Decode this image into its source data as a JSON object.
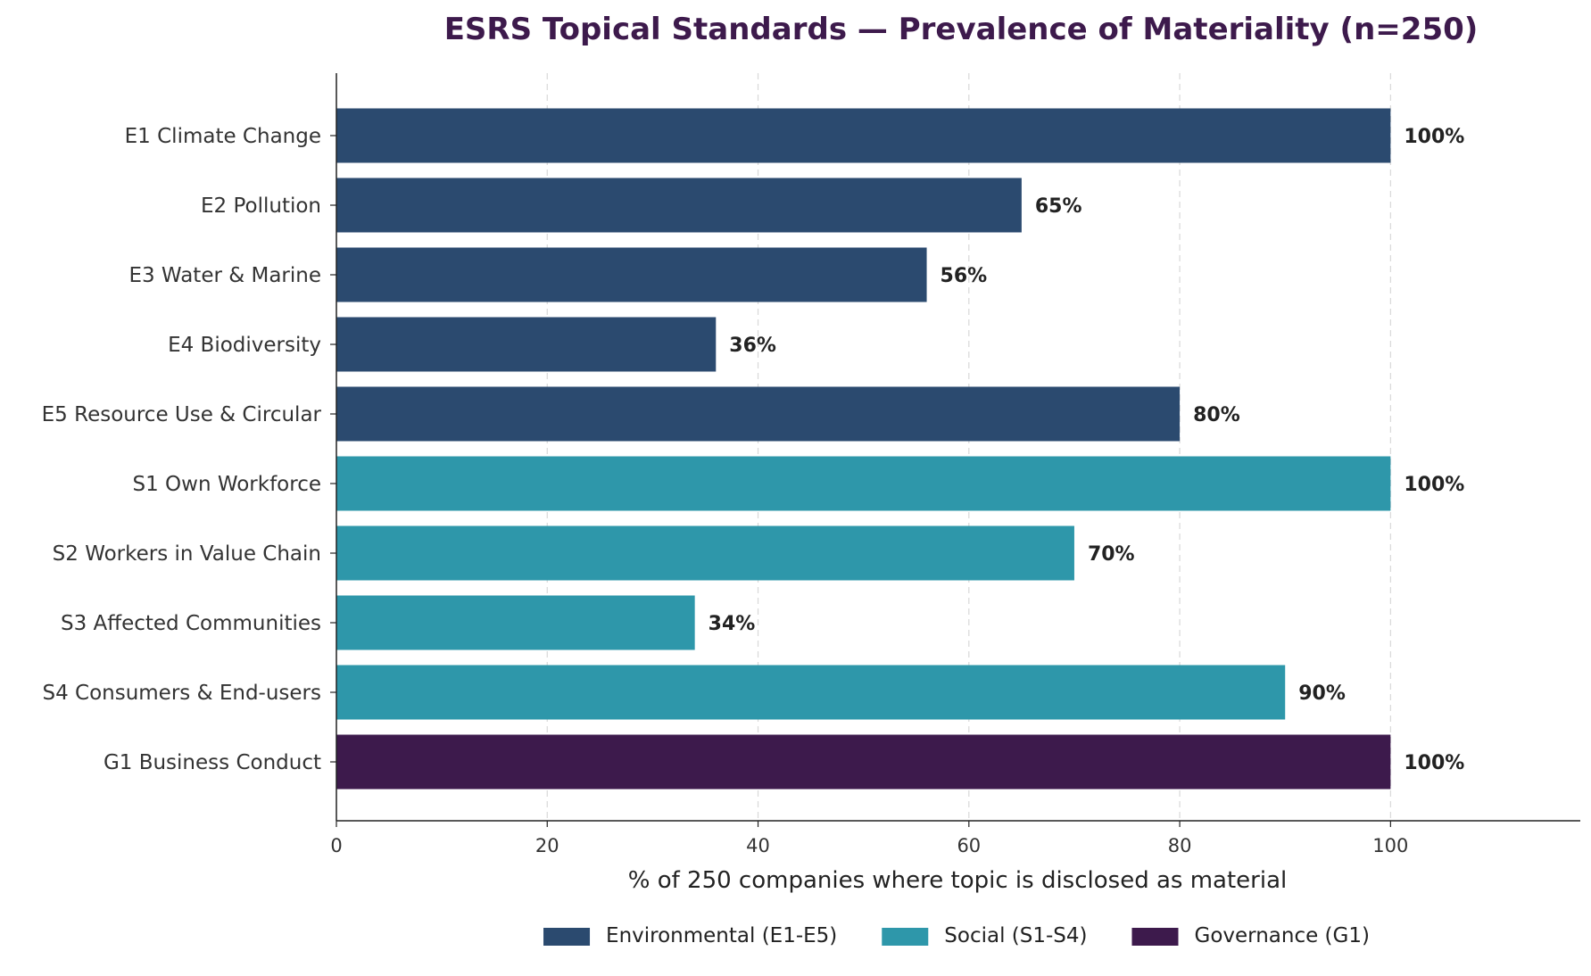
{
  "chart_data": {
    "type": "bar",
    "orientation": "horizontal",
    "title": "ESRS Topical Standards — Prevalence of Materiality (n=250)",
    "xlabel": "% of 250 companies where topic is disclosed as material",
    "ylabel": "",
    "xlim": [
      0,
      118
    ],
    "xticks": [
      0,
      20,
      40,
      60,
      80,
      100
    ],
    "grid": "x-dashed",
    "legend_position": "bottom-center",
    "value_label_suffix": "%",
    "categories": [
      "E1 Climate Change",
      "E2 Pollution",
      "E3 Water & Marine",
      "E4 Biodiversity",
      "E5 Resource Use & Circular",
      "S1 Own Workforce",
      "S2 Workers in Value Chain",
      "S3 Affected Communities",
      "S4 Consumers & End-users",
      "G1 Business Conduct"
    ],
    "values": [
      100,
      65,
      56,
      36,
      80,
      100,
      70,
      34,
      90,
      100
    ],
    "groups": [
      "environmental",
      "environmental",
      "environmental",
      "environmental",
      "environmental",
      "social",
      "social",
      "social",
      "social",
      "governance"
    ],
    "series": [
      {
        "key": "environmental",
        "name": "Environmental (E1-E5)",
        "color": "#2b4a6f"
      },
      {
        "key": "social",
        "name": "Social (S1-S4)",
        "color": "#2e97aa"
      },
      {
        "key": "governance",
        "name": "Governance (G1)",
        "color": "#3d1a4c"
      }
    ]
  }
}
